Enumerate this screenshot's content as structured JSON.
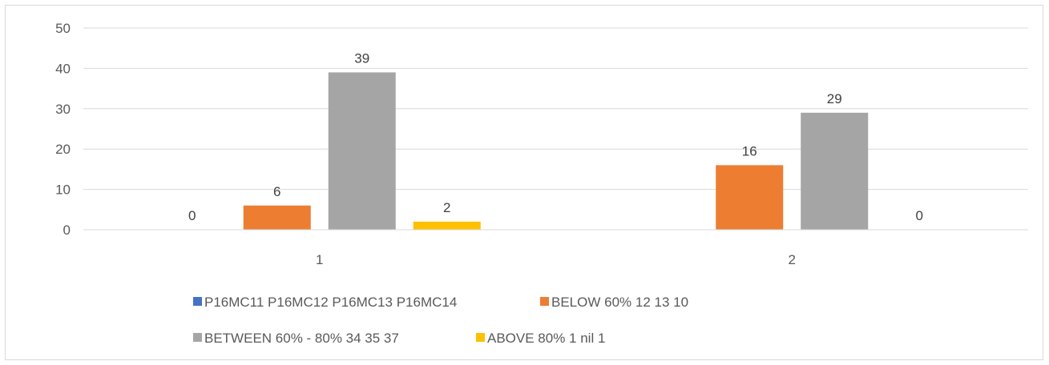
{
  "chart_data": {
    "type": "bar",
    "categories": [
      "1",
      "2"
    ],
    "ylim": [
      0,
      50
    ],
    "yticks": [
      0,
      10,
      20,
      30,
      40,
      50
    ],
    "grid": true,
    "legend_position": "bottom",
    "series": [
      {
        "name": "P16MC11 P16MC12 P16MC13 P16MC14",
        "color": "#4472c4",
        "values": [
          0,
          null
        ]
      },
      {
        "name": "BELOW 60% 12 13 10",
        "color": "#ed7d31",
        "values": [
          6,
          16
        ]
      },
      {
        "name": "BETWEEN 60% - 80% 34 35 37",
        "color": "#a5a5a5",
        "values": [
          39,
          29
        ]
      },
      {
        "name": "ABOVE 80% 1 nil 1",
        "color": "#ffc000",
        "values": [
          2,
          0
        ]
      }
    ],
    "data_labels": [
      [
        "0",
        ""
      ],
      [
        "6",
        "16"
      ],
      [
        "39",
        "29"
      ],
      [
        "2",
        "0"
      ]
    ]
  }
}
